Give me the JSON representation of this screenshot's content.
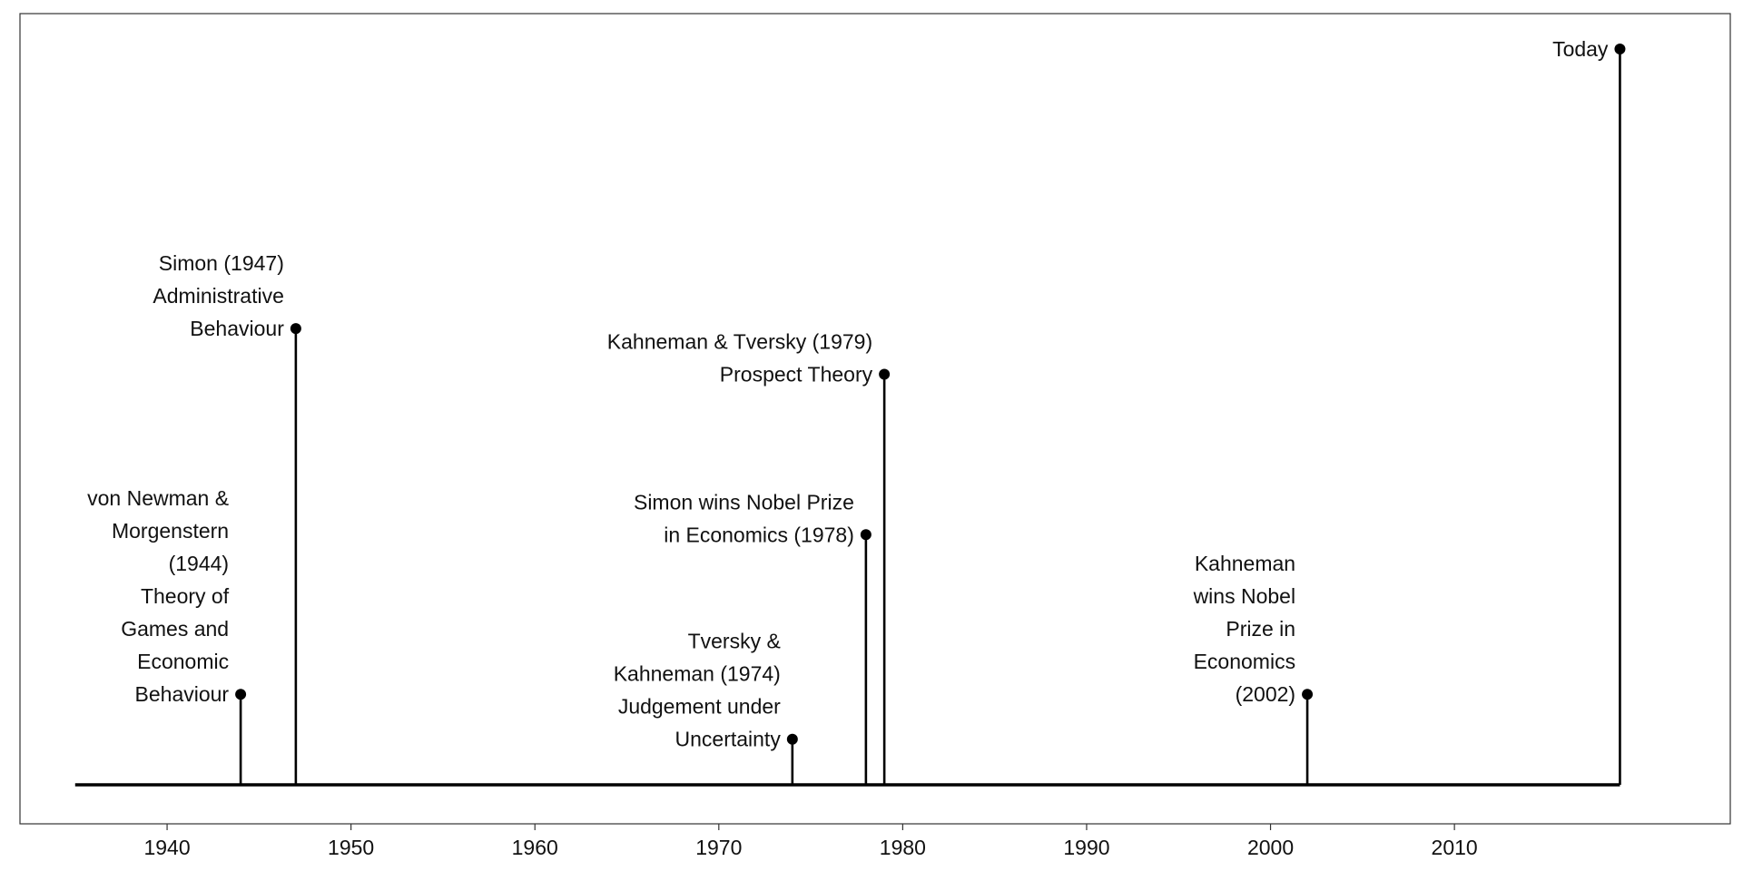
{
  "chart_data": {
    "type": "timeline",
    "title": "",
    "xlabel": "",
    "ylabel": "",
    "xlim": [
      1932,
      2025
    ],
    "ylim": [
      0,
      1
    ],
    "x_ticks": [
      1940,
      1950,
      1960,
      1970,
      1980,
      1990,
      2000,
      2010
    ],
    "axis_line_range": [
      1935,
      2019
    ],
    "grid": false,
    "events": [
      {
        "year": 1944,
        "height": 0.123,
        "label_lines": [
          "von Newman &",
          "Morgenstern",
          "(1944)",
          "Theory of",
          "Games and",
          "Economic",
          "Behaviour"
        ]
      },
      {
        "year": 1947,
        "height": 0.62,
        "label_lines": [
          "Simon (1947)",
          "Administrative",
          "Behaviour"
        ]
      },
      {
        "year": 1974,
        "height": 0.062,
        "label_lines": [
          "Tversky &",
          "Kahneman (1974)",
          "Judgement under",
          "Uncertainty"
        ]
      },
      {
        "year": 1978,
        "height": 0.34,
        "label_lines": [
          "Simon wins Nobel Prize",
          "in Economics (1978)"
        ]
      },
      {
        "year": 1979,
        "height": 0.558,
        "label_lines": [
          "Kahneman & Tversky (1979)",
          "Prospect Theory"
        ]
      },
      {
        "year": 2002,
        "height": 0.123,
        "label_lines": [
          "Kahneman",
          "wins Nobel",
          "Prize in",
          "Economics",
          "(2002)"
        ]
      },
      {
        "year": 2019,
        "height": 1.0,
        "label_lines": [
          "Today"
        ]
      }
    ]
  }
}
